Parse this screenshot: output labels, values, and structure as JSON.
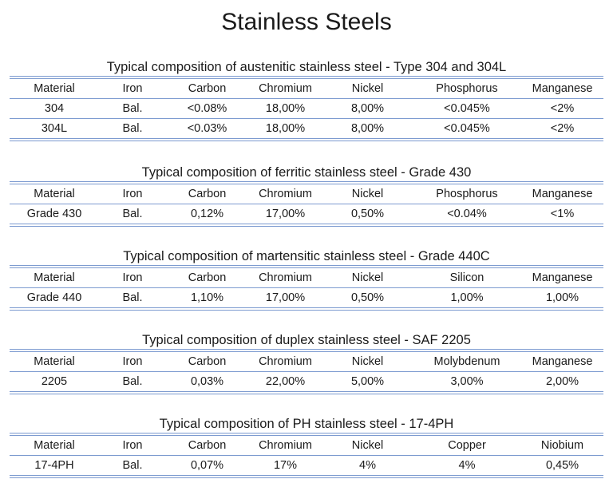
{
  "title": "Stainless Steels",
  "sections": [
    {
      "title": "Typical composition of austenitic stainless steel  - Type 304 and 304L",
      "headers": [
        "Material",
        "Iron",
        "Carbon",
        "Chromium",
        "Nickel",
        "Phosphorus",
        "Manganese"
      ],
      "rows": [
        [
          "304",
          "Bal.",
          "<0.08%",
          "18,00%",
          "8,00%",
          "<0.045%",
          "<2%"
        ],
        [
          "304L",
          "Bal.",
          "<0.03%",
          "18,00%",
          "8,00%",
          "<0.045%",
          "<2%"
        ]
      ]
    },
    {
      "title": "Typical composition of ferritic stainless steel  - Grade 430",
      "headers": [
        "Material",
        "Iron",
        "Carbon",
        "Chromium",
        "Nickel",
        "Phosphorus",
        "Manganese"
      ],
      "rows": [
        [
          "Grade 430",
          "Bal.",
          "0,12%",
          "17,00%",
          "0,50%",
          "<0.04%",
          "<1%"
        ]
      ]
    },
    {
      "title": "Typical composition of martensitic stainless steel  - Grade 440C",
      "headers": [
        "Material",
        "Iron",
        "Carbon",
        "Chromium",
        "Nickel",
        "Silicon",
        "Manganese"
      ],
      "rows": [
        [
          "Grade 440",
          "Bal.",
          "1,10%",
          "17,00%",
          "0,50%",
          "1,00%",
          "1,00%"
        ]
      ]
    },
    {
      "title": "Typical composition of duplex stainless steel  - SAF 2205",
      "headers": [
        "Material",
        "Iron",
        "Carbon",
        "Chromium",
        "Nickel",
        "Molybdenum",
        "Manganese"
      ],
      "rows": [
        [
          "2205",
          "Bal.",
          "0,03%",
          "22,00%",
          "5,00%",
          "3,00%",
          "2,00%"
        ]
      ]
    },
    {
      "title": "Typical composition of PH stainless steel  - 17-4PH",
      "headers": [
        "Material",
        "Iron",
        "Carbon",
        "Chromium",
        "Nickel",
        "Copper",
        "Niobium"
      ],
      "rows": [
        [
          "17-4PH",
          "Bal.",
          "0,07%",
          "17%",
          "4%",
          "4%",
          "0,45%"
        ]
      ]
    }
  ]
}
